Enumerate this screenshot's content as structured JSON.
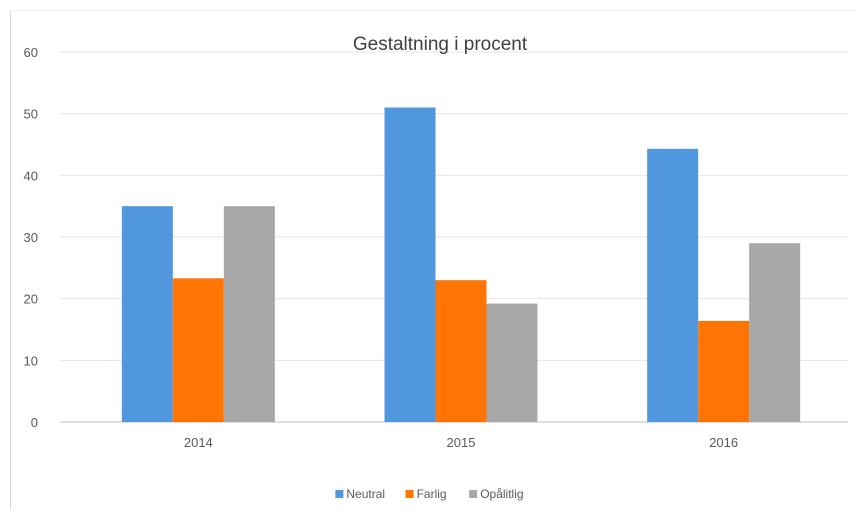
{
  "chart_data": {
    "type": "bar",
    "title": "Gestaltning i procent",
    "categories": [
      "2014",
      "2015",
      "2016"
    ],
    "series": [
      {
        "name": "Neutral",
        "color": "#5197DD",
        "values": [
          35,
          51,
          44.3
        ]
      },
      {
        "name": "Farlig",
        "color": "#FF7505",
        "values": [
          23.3,
          23,
          16.4
        ]
      },
      {
        "name": "Opålitlig",
        "color": "#A8A8A8",
        "values": [
          35,
          19.2,
          29
        ]
      }
    ],
    "ylim": [
      0,
      60
    ],
    "yticks": [
      "0",
      "10",
      "20",
      "30",
      "40",
      "50",
      "60"
    ],
    "grid": true,
    "legend_position": "bottom"
  }
}
